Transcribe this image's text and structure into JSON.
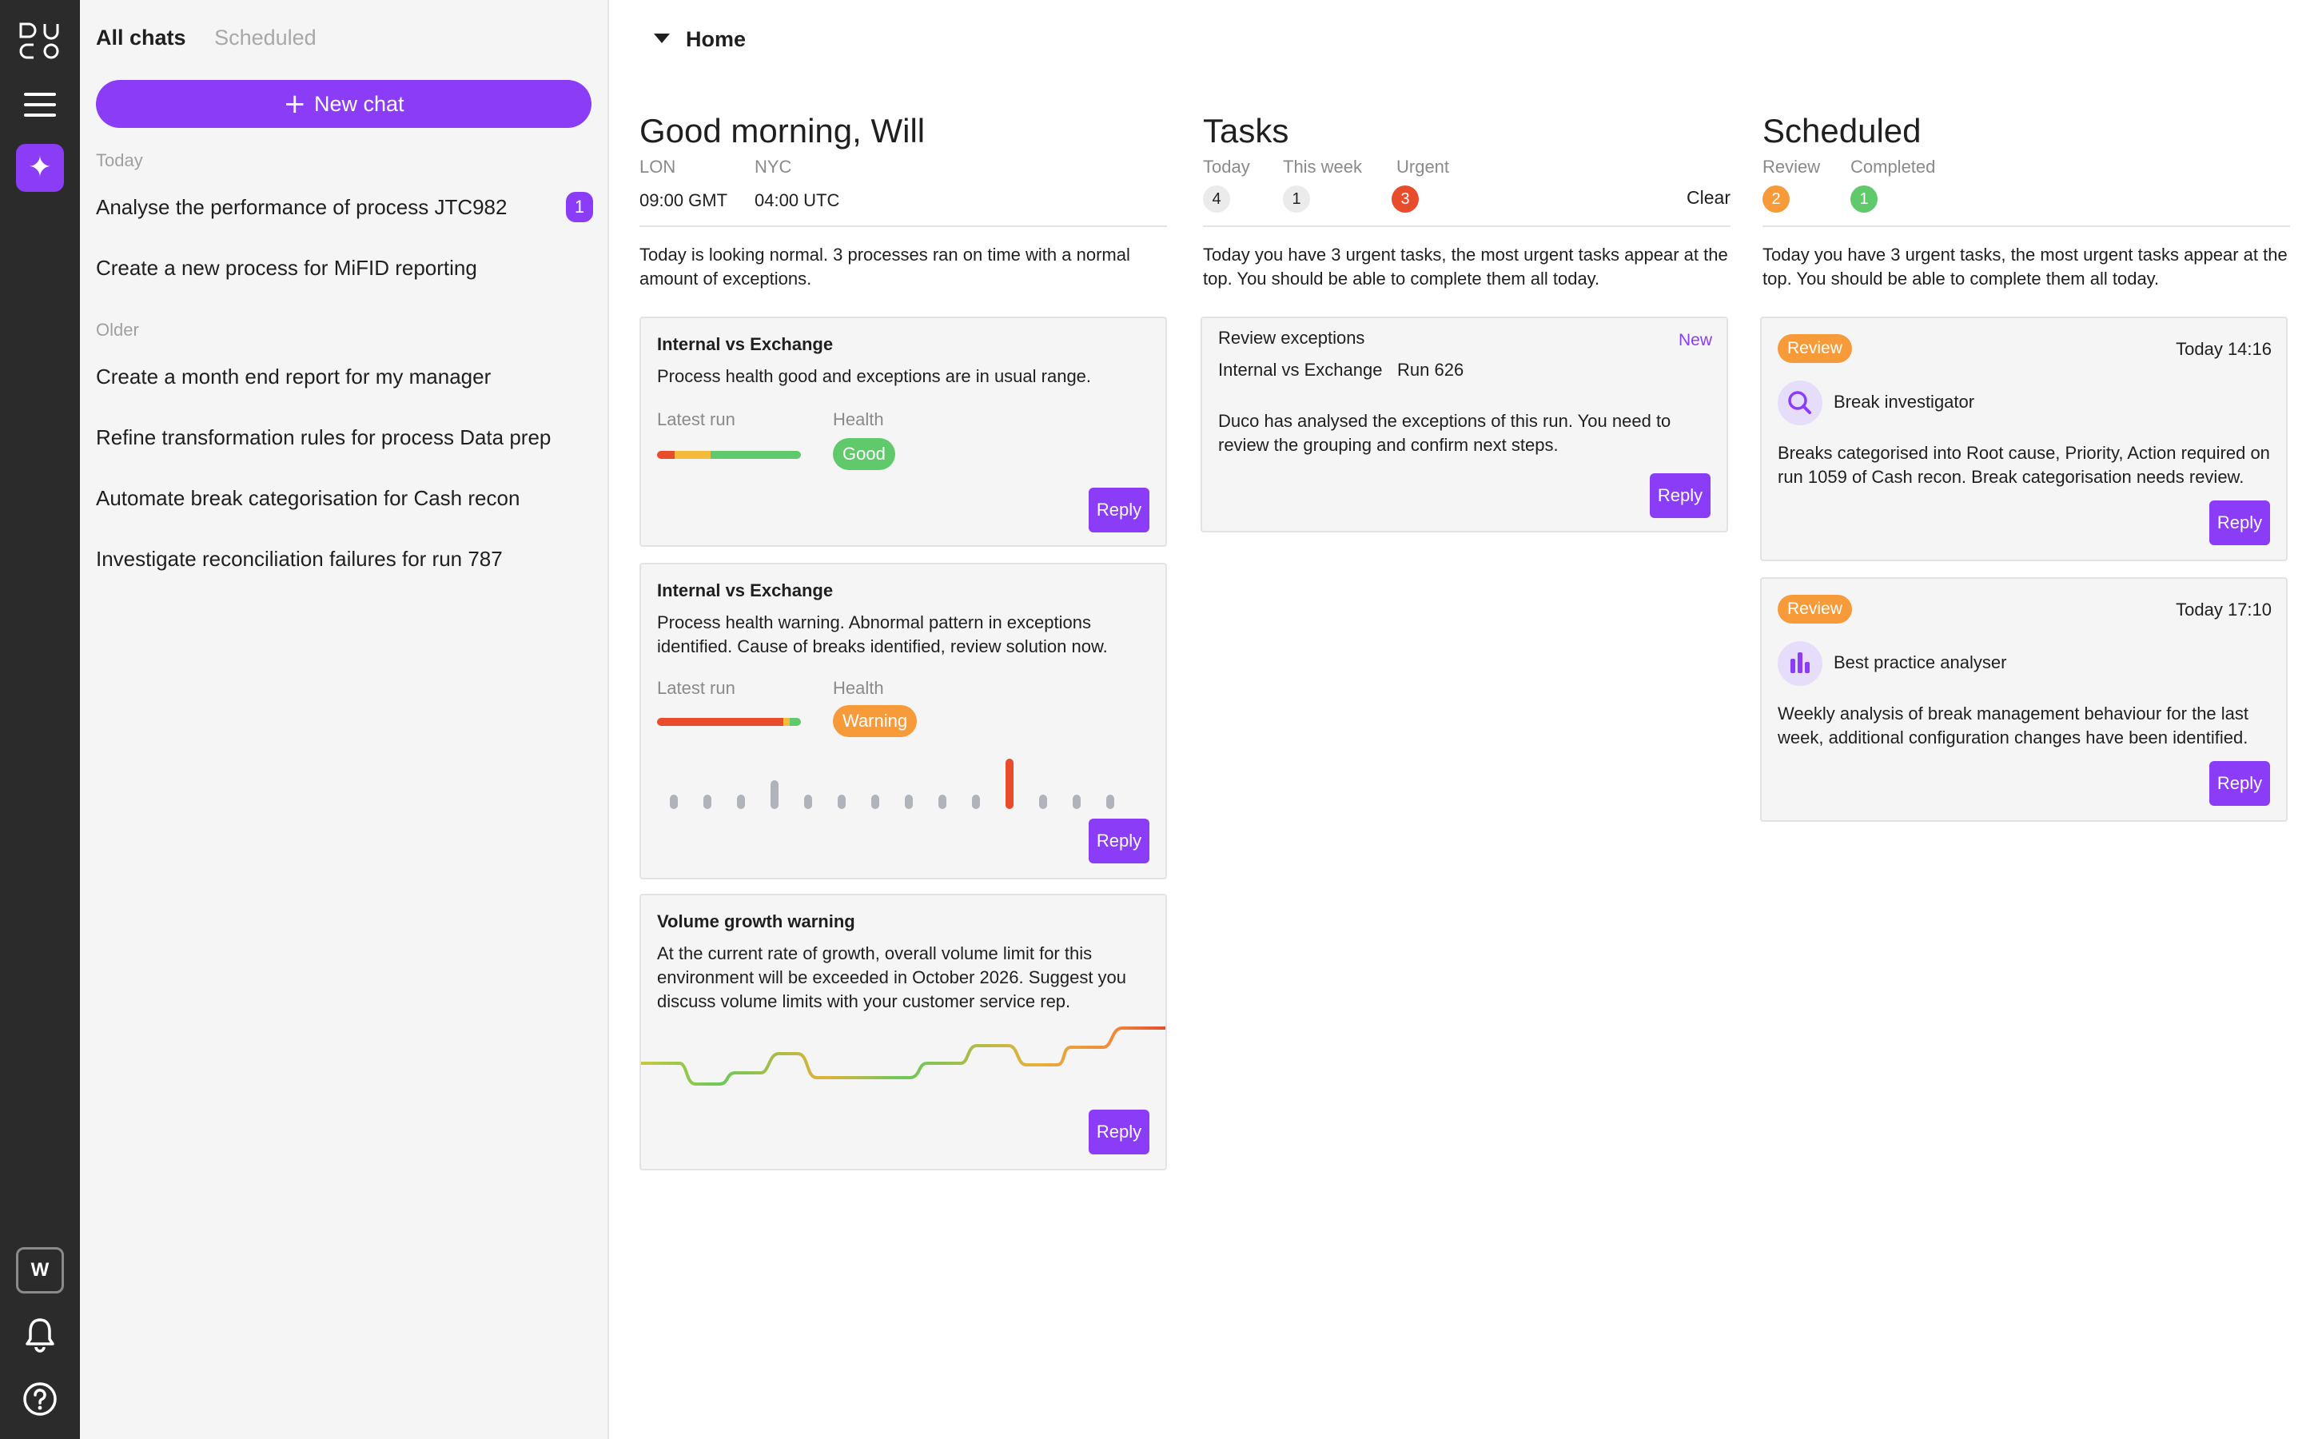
{
  "brand": {
    "logo_icon": "duco-logo-icon",
    "accent": "#8b3cf7"
  },
  "rail": {
    "menu_icon": "hamburger-menu-icon",
    "ai_icon": "sparkle-icon",
    "avatar_initial": "W",
    "bell_icon": "bell-icon",
    "help_icon": "help-icon"
  },
  "sidebar": {
    "tabs": [
      {
        "label": "All chats",
        "active": true
      },
      {
        "label": "Scheduled",
        "active": false
      }
    ],
    "new_chat_label": "New chat",
    "today_label": "Today",
    "older_label": "Older",
    "today_items": [
      {
        "label": "Analyse the performance of process JTC982",
        "badge": "1"
      },
      {
        "label": "Create a new process for MiFID reporting"
      }
    ],
    "older_items": [
      {
        "label": "Create a month end report for my manager"
      },
      {
        "label": "Refine transformation rules for process Data prep"
      },
      {
        "label": "Automate break categorisation for Cash recon"
      },
      {
        "label": "Investigate reconciliation failures for run 787"
      }
    ]
  },
  "breadcrumb": {
    "label": "Home"
  },
  "greeting": {
    "title": "Good morning, Will",
    "clocks": [
      {
        "city": "LON",
        "time": "09:00 GMT"
      },
      {
        "city": "NYC",
        "time": "04:00 UTC"
      }
    ],
    "summary": "Today is looking normal. 3 processes ran on time with a normal amount of exceptions.",
    "cards": [
      {
        "title": "Internal vs Exchange",
        "text": "Process health good and exceptions are in usual range.",
        "latest_run_label": "Latest run",
        "health_label": "Health",
        "health": "Good",
        "health_color": "#5fc96b",
        "run_bar": {
          "red": 0.12,
          "orange": 0.25,
          "green": 0.63
        },
        "reply_label": "Reply"
      },
      {
        "title": "Internal vs Exchange",
        "text": "Process health warning. Abnormal pattern in exceptions identified. Cause of breaks identified, review solution now.",
        "latest_run_label": "Latest run",
        "health_label": "Health",
        "health": "Warning",
        "health_color": "#f79a3a",
        "run_bar": {
          "red": 0.88,
          "orange": 0.04,
          "green": 0.08
        },
        "exceptions": [
          1,
          1,
          1,
          2,
          1,
          1,
          1,
          1,
          1,
          1,
          3.5,
          1,
          1,
          1
        ],
        "highlight_index": 10,
        "reply_label": "Reply"
      },
      {
        "title": "Volume growth warning",
        "text": "At the current rate of growth, overall volume limit for this environment will be exceeded in October 2026. Suggest you discuss volume limits with your customer service rep.",
        "reply_label": "Reply"
      }
    ]
  },
  "tasks": {
    "title": "Tasks",
    "counts": [
      {
        "label": "Today",
        "value": "4",
        "style": "grey"
      },
      {
        "label": "This week",
        "value": "1",
        "style": "grey"
      },
      {
        "label": "Urgent",
        "value": "3",
        "style": "red"
      }
    ],
    "clear_label": "Clear",
    "summary": "Today you have 3 urgent tasks, the most urgent tasks appear at the top. You should be able to complete them all today.",
    "cards": [
      {
        "title": "Review exceptions",
        "badge": "New",
        "process": "Internal vs Exchange",
        "run": "Run 626",
        "text": "Duco has analysed the exceptions of this run. You need to review the grouping and confirm next steps.",
        "reply_label": "Reply"
      }
    ]
  },
  "scheduled": {
    "title": "Scheduled",
    "counts": [
      {
        "label": "Review",
        "value": "2",
        "style": "orange"
      },
      {
        "label": "Completed",
        "value": "1",
        "style": "green"
      }
    ],
    "summary": "Today you have 3 urgent tasks, the most urgent tasks appear at the top. You should be able to complete them all today.",
    "cards": [
      {
        "tag": "Review",
        "time": "Today 14:16",
        "agent": "Break investigator",
        "agent_icon": "magnifier-icon",
        "text": "Breaks categorised into Root cause, Priority, Action required on run 1059 of Cash recon. Break categorisation needs review.",
        "reply_label": "Reply"
      },
      {
        "tag": "Review",
        "time": "Today 17:10",
        "agent": "Best practice analyser",
        "agent_icon": "bar-chart-icon",
        "text": "Weekly analysis of break management behaviour for the last week, additional configuration changes have been identified.",
        "reply_label": "Reply"
      }
    ]
  }
}
